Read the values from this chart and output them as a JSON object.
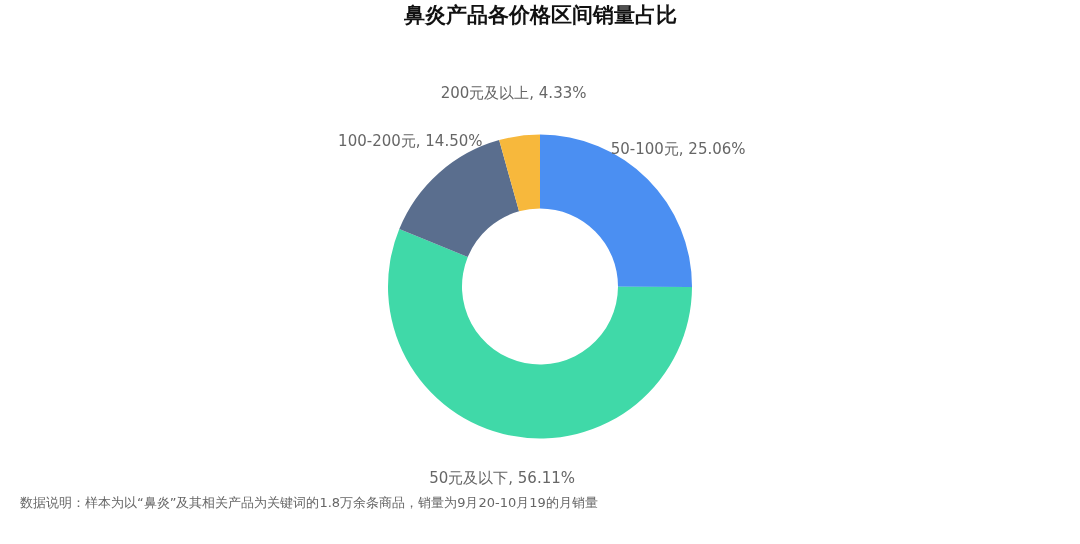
{
  "chart_data": {
    "type": "donut",
    "title": "鼻炎产品各价格区间销量占比",
    "categories": [
      "50-100元",
      "50元及以下",
      "100-200元",
      "200元及以上"
    ],
    "values": [
      25.06,
      56.11,
      14.5,
      4.33
    ],
    "colors": [
      "#4b8ff2",
      "#40d9a8",
      "#5a6e8e",
      "#f7b83c"
    ],
    "value_labels": [
      "25.06%",
      "56.11%",
      "14.50%",
      "4.33%"
    ],
    "legend": false,
    "annotations": [
      "数据说明：样本为以“鼻炎”及其相关产品为关键词的1.8万余条商品，销量为9月20-10月19的月销量"
    ]
  }
}
